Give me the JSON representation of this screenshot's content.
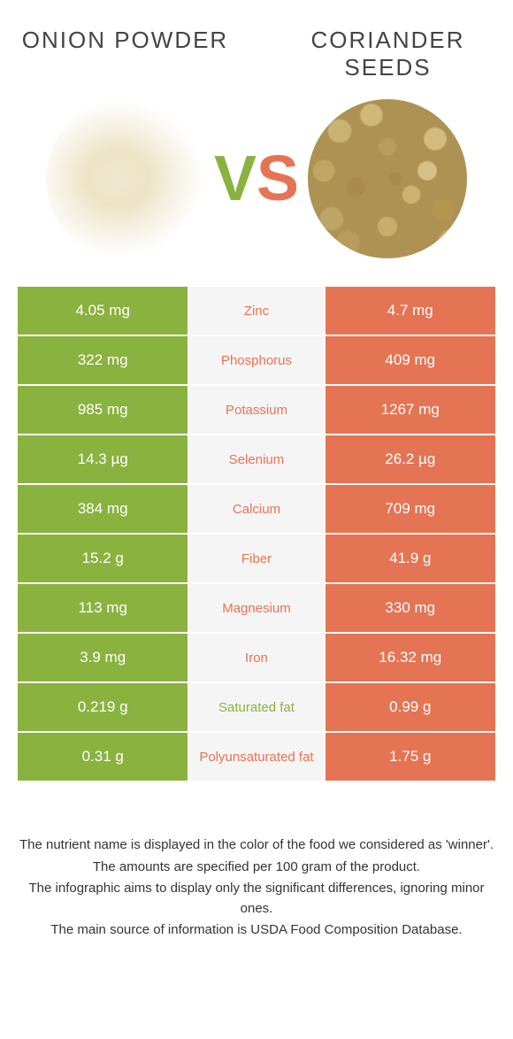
{
  "header": {
    "left_title": "Onion powder",
    "right_title": "Coriander seeds"
  },
  "vs": {
    "v": "V",
    "s": "S"
  },
  "colors": {
    "left": "#8ab23f",
    "right": "#e57454",
    "mid_bg": "#f5f5f5",
    "text_white": "#ffffff"
  },
  "comparison": {
    "type": "table",
    "rows": [
      {
        "left": "4.05 mg",
        "label": "Zinc",
        "right": "4.7 mg",
        "winner": "right"
      },
      {
        "left": "322 mg",
        "label": "Phosphorus",
        "right": "409 mg",
        "winner": "right"
      },
      {
        "left": "985 mg",
        "label": "Potassium",
        "right": "1267 mg",
        "winner": "right"
      },
      {
        "left": "14.3 µg",
        "label": "Selenium",
        "right": "26.2 µg",
        "winner": "right"
      },
      {
        "left": "384 mg",
        "label": "Calcium",
        "right": "709 mg",
        "winner": "right"
      },
      {
        "left": "15.2 g",
        "label": "Fiber",
        "right": "41.9 g",
        "winner": "right"
      },
      {
        "left": "113 mg",
        "label": "Magnesium",
        "right": "330 mg",
        "winner": "right"
      },
      {
        "left": "3.9 mg",
        "label": "Iron",
        "right": "16.32 mg",
        "winner": "right"
      },
      {
        "left": "0.219 g",
        "label": "Saturated fat",
        "right": "0.99 g",
        "winner": "left"
      },
      {
        "left": "0.31 g",
        "label": "Polyunsaturated fat",
        "right": "1.75 g",
        "winner": "right"
      }
    ]
  },
  "footer": {
    "line1": "The nutrient name is displayed in the color of the food we considered as 'winner'.",
    "line2": "The amounts are specified per 100 gram of the product.",
    "line3": "The infographic aims to display only the significant differences, ignoring minor ones.",
    "line4": "The main source of information is USDA Food Composition Database."
  }
}
